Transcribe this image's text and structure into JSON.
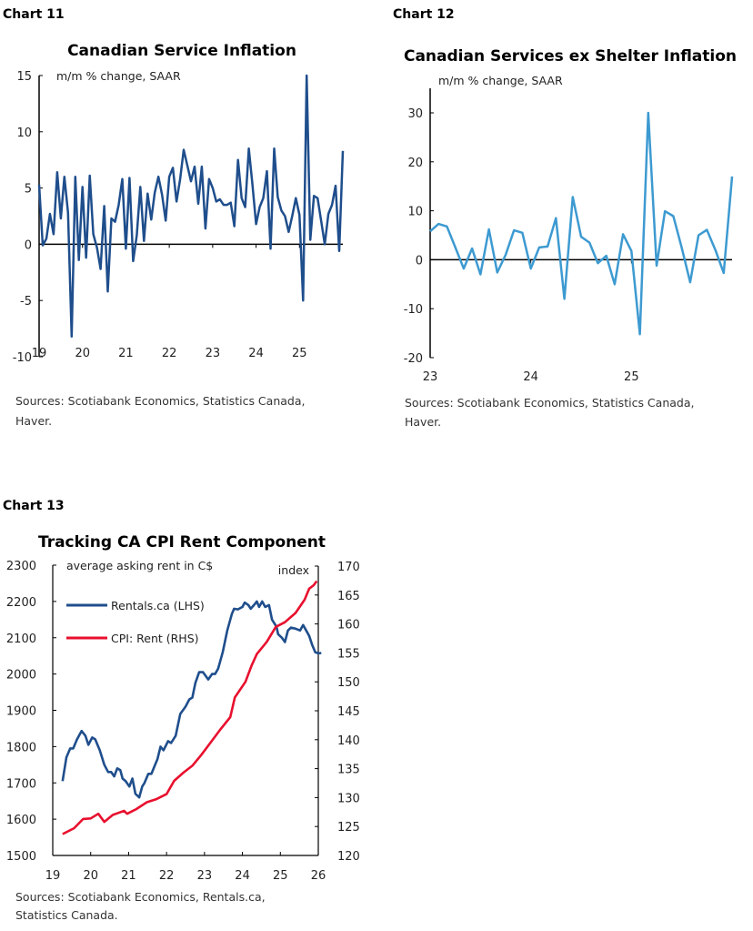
{
  "chart_data": [
    {
      "type": "line",
      "chart_number": "Chart 11",
      "title": "Canadian Service Inflation",
      "unit_label": "m/m % change, SAAR",
      "source": [
        "Sources: Scotiabank Economics, Statistics Canada,",
        "Haver."
      ],
      "ylim": [
        -10,
        15
      ],
      "yticks": [
        "-10",
        "-5",
        "0",
        "5",
        "10",
        "15"
      ],
      "xlim": [
        2019,
        2026
      ],
      "xticks": [
        "19",
        "20",
        "21",
        "22",
        "23",
        "24",
        "25"
      ],
      "grid": false,
      "color": "#1f4e8c",
      "x": [
        "2019-01",
        "2019-02",
        "2019-03",
        "2019-04",
        "2019-05",
        "2019-06",
        "2019-07",
        "2019-08",
        "2019-09",
        "2019-10",
        "2019-11",
        "2019-12",
        "2020-01",
        "2020-02",
        "2020-03",
        "2020-04",
        "2020-05",
        "2020-06",
        "2020-07",
        "2020-08",
        "2020-09",
        "2020-10",
        "2020-11",
        "2020-12",
        "2021-01",
        "2021-02",
        "2021-03",
        "2021-04",
        "2021-05",
        "2021-06",
        "2021-07",
        "2021-08",
        "2021-09",
        "2021-10",
        "2021-11",
        "2021-12",
        "2022-01",
        "2022-02",
        "2022-03",
        "2022-04",
        "2022-05",
        "2022-06",
        "2022-07",
        "2022-08",
        "2022-09",
        "2022-10",
        "2022-11",
        "2022-12",
        "2023-01",
        "2023-02",
        "2023-03",
        "2023-04",
        "2023-05",
        "2023-06",
        "2023-07",
        "2023-08",
        "2023-09",
        "2023-10",
        "2023-11",
        "2023-12",
        "2024-01",
        "2024-02",
        "2024-03",
        "2024-04",
        "2024-05",
        "2024-06",
        "2024-07",
        "2024-08",
        "2024-09",
        "2024-10",
        "2024-11",
        "2024-12",
        "2025-01",
        "2025-02",
        "2025-03",
        "2025-04",
        "2025-05",
        "2025-06",
        "2025-07",
        "2025-08",
        "2025-09",
        "2025-10",
        "2025-11",
        "2025-12",
        "2026-01"
      ],
      "values": [
        5.3,
        -0.1,
        0.5,
        2.7,
        0.9,
        6.4,
        2.3,
        6.0,
        2.8,
        -8.2,
        6.0,
        -1.4,
        5.1,
        -1.2,
        6.1,
        0.9,
        -0.3,
        -2.2,
        3.4,
        -4.2,
        2.3,
        2.0,
        3.5,
        5.8,
        -0.4,
        5.9,
        -1.5,
        0.8,
        5.1,
        0.3,
        4.5,
        2.2,
        4.6,
        6.0,
        4.4,
        2.1,
        6.0,
        6.8,
        3.8,
        5.8,
        8.4,
        7.0,
        5.6,
        6.9,
        3.6,
        6.9,
        1.4,
        5.8,
        5.0,
        3.8,
        4.0,
        3.5,
        3.5,
        3.7,
        1.6,
        7.5,
        4.1,
        3.3,
        8.5,
        5.3,
        1.8,
        3.3,
        4.1,
        6.5,
        -0.4,
        8.5,
        4.2,
        3.0,
        2.5,
        1.1,
        2.5,
        4.1,
        2.6,
        -5.0,
        15.0,
        0.4,
        4.3,
        4.1,
        2.1,
        0.0,
        2.7,
        3.5,
        5.2,
        -0.6,
        8.3
      ]
    },
    {
      "type": "line",
      "chart_number": "Chart 12",
      "title": "Canadian Services ex Shelter Inflation",
      "unit_label": "m/m % change, SAAR",
      "source": [
        "Sources: Scotiabank Economics, Statistics Canada,",
        "Haver."
      ],
      "ylim": [
        -20,
        35
      ],
      "yticks": [
        "-20",
        "-10",
        "0",
        "10",
        "20",
        "30"
      ],
      "xlim": [
        2023,
        2026
      ],
      "xticks": [
        "23",
        "24",
        "25"
      ],
      "grid": false,
      "color": "#3d9ad1",
      "x": [
        "2023-01",
        "2023-02",
        "2023-03",
        "2023-04",
        "2023-05",
        "2023-06",
        "2023-07",
        "2023-08",
        "2023-09",
        "2023-10",
        "2023-11",
        "2023-12",
        "2024-01",
        "2024-02",
        "2024-03",
        "2024-04",
        "2024-05",
        "2024-06",
        "2024-07",
        "2024-08",
        "2024-09",
        "2024-10",
        "2024-11",
        "2024-12",
        "2025-01",
        "2025-02",
        "2025-03",
        "2025-04",
        "2025-05",
        "2025-06",
        "2025-07",
        "2025-08",
        "2025-09",
        "2025-10",
        "2025-11",
        "2025-12",
        "2026-01"
      ],
      "values": [
        5.8,
        7.3,
        6.8,
        2.5,
        -1.8,
        2.3,
        -3.0,
        6.2,
        -2.6,
        1.0,
        6.0,
        5.5,
        -1.8,
        2.5,
        2.7,
        8.5,
        -8.0,
        12.8,
        4.7,
        3.5,
        -0.7,
        0.8,
        -5.0,
        5.2,
        1.8,
        -15.2,
        30.0,
        -1.2,
        9.9,
        8.9,
        2.4,
        -4.6,
        5.0,
        6.1,
        2.0,
        -2.7,
        17.0
      ]
    },
    {
      "type": "line",
      "chart_number": "Chart 13",
      "title": "Tracking CA CPI Rent Component",
      "left_unit_label": "average asking rent in C$",
      "right_unit_label": "index",
      "source": [
        "Sources: Scotiabank Economics, Rentals.ca,",
        "Statistics Canada."
      ],
      "xlim": [
        2019,
        2026
      ],
      "xticks": [
        "19",
        "20",
        "21",
        "22",
        "23",
        "24",
        "25",
        "26"
      ],
      "ylim_left": [
        1500,
        2300
      ],
      "yticks_left": [
        "1500",
        "1600",
        "1700",
        "1800",
        "1900",
        "2000",
        "2100",
        "2200",
        "2300"
      ],
      "ylim_right": [
        120,
        170
      ],
      "yticks_right": [
        "120",
        "125",
        "130",
        "135",
        "140",
        "145",
        "150",
        "155",
        "160",
        "165",
        "170"
      ],
      "legend_placement": "top-left",
      "grid": false,
      "series": [
        {
          "name": "Rentals.ca (LHS)",
          "axis": "left",
          "color": "#1f4e8c",
          "points": [
            [
              2019.26,
              1705
            ],
            [
              2019.36,
              1770
            ],
            [
              2019.46,
              1795
            ],
            [
              2019.54,
              1795
            ],
            [
              2019.64,
              1820
            ],
            [
              2019.76,
              1843
            ],
            [
              2019.86,
              1830
            ],
            [
              2019.94,
              1805
            ],
            [
              2020.04,
              1825
            ],
            [
              2020.12,
              1820
            ],
            [
              2020.24,
              1790
            ],
            [
              2020.36,
              1750
            ],
            [
              2020.46,
              1730
            ],
            [
              2020.54,
              1730
            ],
            [
              2020.62,
              1718
            ],
            [
              2020.7,
              1740
            ],
            [
              2020.78,
              1735
            ],
            [
              2020.84,
              1712
            ],
            [
              2020.92,
              1705
            ],
            [
              2021.02,
              1690
            ],
            [
              2021.1,
              1712
            ],
            [
              2021.18,
              1670
            ],
            [
              2021.28,
              1660
            ],
            [
              2021.36,
              1690
            ],
            [
              2021.42,
              1700
            ],
            [
              2021.52,
              1725
            ],
            [
              2021.6,
              1725
            ],
            [
              2021.7,
              1750
            ],
            [
              2021.76,
              1765
            ],
            [
              2021.84,
              1800
            ],
            [
              2021.92,
              1790
            ],
            [
              2022.04,
              1815
            ],
            [
              2022.12,
              1810
            ],
            [
              2022.24,
              1830
            ],
            [
              2022.36,
              1890
            ],
            [
              2022.5,
              1910
            ],
            [
              2022.6,
              1930
            ],
            [
              2022.68,
              1935
            ],
            [
              2022.76,
              1975
            ],
            [
              2022.86,
              2005
            ],
            [
              2022.96,
              2005
            ],
            [
              2023.1,
              1985
            ],
            [
              2023.2,
              2000
            ],
            [
              2023.28,
              2000
            ],
            [
              2023.36,
              2015
            ],
            [
              2023.48,
              2060
            ],
            [
              2023.6,
              2120
            ],
            [
              2023.72,
              2165
            ],
            [
              2023.78,
              2180
            ],
            [
              2023.88,
              2178
            ],
            [
              2024.0,
              2185
            ],
            [
              2024.06,
              2197
            ],
            [
              2024.16,
              2190
            ],
            [
              2024.22,
              2180
            ],
            [
              2024.32,
              2192
            ],
            [
              2024.38,
              2200
            ],
            [
              2024.44,
              2185
            ],
            [
              2024.52,
              2200
            ],
            [
              2024.6,
              2185
            ],
            [
              2024.7,
              2190
            ],
            [
              2024.78,
              2150
            ],
            [
              2024.9,
              2130
            ],
            [
              2024.94,
              2110
            ],
            [
              2025.04,
              2100
            ],
            [
              2025.12,
              2088
            ],
            [
              2025.2,
              2120
            ],
            [
              2025.28,
              2128
            ],
            [
              2025.4,
              2125
            ],
            [
              2025.52,
              2120
            ],
            [
              2025.6,
              2135
            ],
            [
              2025.68,
              2120
            ],
            [
              2025.76,
              2105
            ],
            [
              2025.84,
              2080
            ],
            [
              2025.92,
              2060
            ],
            [
              2026.0,
              2057
            ],
            [
              2026.08,
              2058
            ]
          ]
        },
        {
          "name": "CPI: Rent (RHS)",
          "axis": "right",
          "color": "#e8102e",
          "points": [
            [
              2019.26,
              123.7
            ],
            [
              2019.56,
              124.7
            ],
            [
              2019.8,
              126.3
            ],
            [
              2020.0,
              126.4
            ],
            [
              2020.2,
              127.2
            ],
            [
              2020.36,
              125.8
            ],
            [
              2020.58,
              127.0
            ],
            [
              2020.88,
              127.7
            ],
            [
              2020.96,
              127.2
            ],
            [
              2021.2,
              128.0
            ],
            [
              2021.48,
              129.2
            ],
            [
              2021.72,
              129.7
            ],
            [
              2022.0,
              130.6
            ],
            [
              2022.2,
              132.9
            ],
            [
              2022.44,
              134.3
            ],
            [
              2022.68,
              135.5
            ],
            [
              2022.92,
              137.4
            ],
            [
              2023.16,
              139.5
            ],
            [
              2023.4,
              141.6
            ],
            [
              2023.68,
              143.9
            ],
            [
              2023.8,
              147.3
            ],
            [
              2024.08,
              150.0
            ],
            [
              2024.24,
              152.8
            ],
            [
              2024.38,
              154.8
            ],
            [
              2024.64,
              156.9
            ],
            [
              2024.88,
              159.5
            ],
            [
              2025.12,
              160.3
            ],
            [
              2025.4,
              161.9
            ],
            [
              2025.64,
              164.2
            ],
            [
              2025.76,
              166.1
            ],
            [
              2025.88,
              166.7
            ],
            [
              2025.96,
              167.4
            ]
          ]
        }
      ]
    }
  ]
}
